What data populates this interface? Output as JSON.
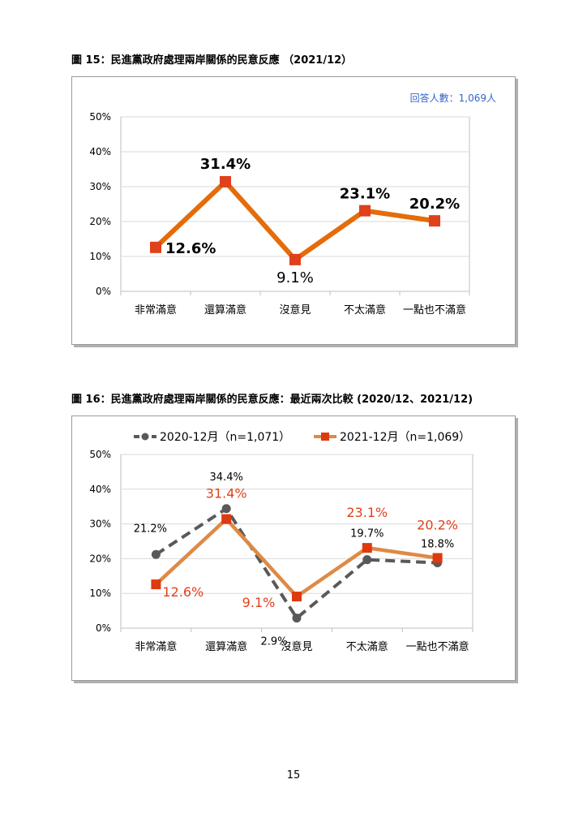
{
  "page_number": "15",
  "chart_data": [
    {
      "type": "line",
      "title": "圖 15：民進黨政府處理兩岸關係的民意反應 （2021/12）",
      "annotation": "回答人數：1,069人",
      "categories": [
        "非常滿意",
        "還算滿意",
        "沒意見",
        "不太滿意",
        "一點也不滿意"
      ],
      "yticks": [
        "0%",
        "10%",
        "20%",
        "30%",
        "40%",
        "50%"
      ],
      "ylim": [
        0,
        50
      ],
      "grid": true,
      "series": [
        {
          "values": [
            12.6,
            31.4,
            9.1,
            23.1,
            20.2
          ],
          "labels": [
            "12.6%",
            "31.4%",
            "9.1%",
            "23.1%",
            "20.2%"
          ],
          "color": "#E46C0A",
          "marker_color": "#E0401A"
        }
      ]
    },
    {
      "type": "line",
      "title": "圖 16：民進黨政府處理兩岸關係的民意反應：最近兩次比較 (2020/12、2021/12)",
      "categories": [
        "非常滿意",
        "還算滿意",
        "沒意見",
        "不太滿意",
        "一點也不滿意"
      ],
      "yticks": [
        "0%",
        "10%",
        "20%",
        "30%",
        "40%",
        "50%"
      ],
      "ylim": [
        0,
        50
      ],
      "grid": true,
      "legend": "top",
      "series": [
        {
          "name": "2020-12月（n=1,071）",
          "values": [
            21.2,
            34.4,
            2.9,
            19.7,
            18.8
          ],
          "labels": [
            "21.2%",
            "34.4%",
            "2.9%",
            "19.7%",
            "18.8%"
          ],
          "color": "#595959",
          "style": "dashed"
        },
        {
          "name": "2021-12月（n=1,069）",
          "values": [
            12.6,
            31.4,
            9.1,
            23.1,
            20.2
          ],
          "labels": [
            "12.6%",
            "31.4%",
            "9.1%",
            "23.1%",
            "20.2%"
          ],
          "color": "#DE8A45",
          "marker_color": "#DD3A0F",
          "label_color": "#E0401A"
        }
      ]
    }
  ]
}
